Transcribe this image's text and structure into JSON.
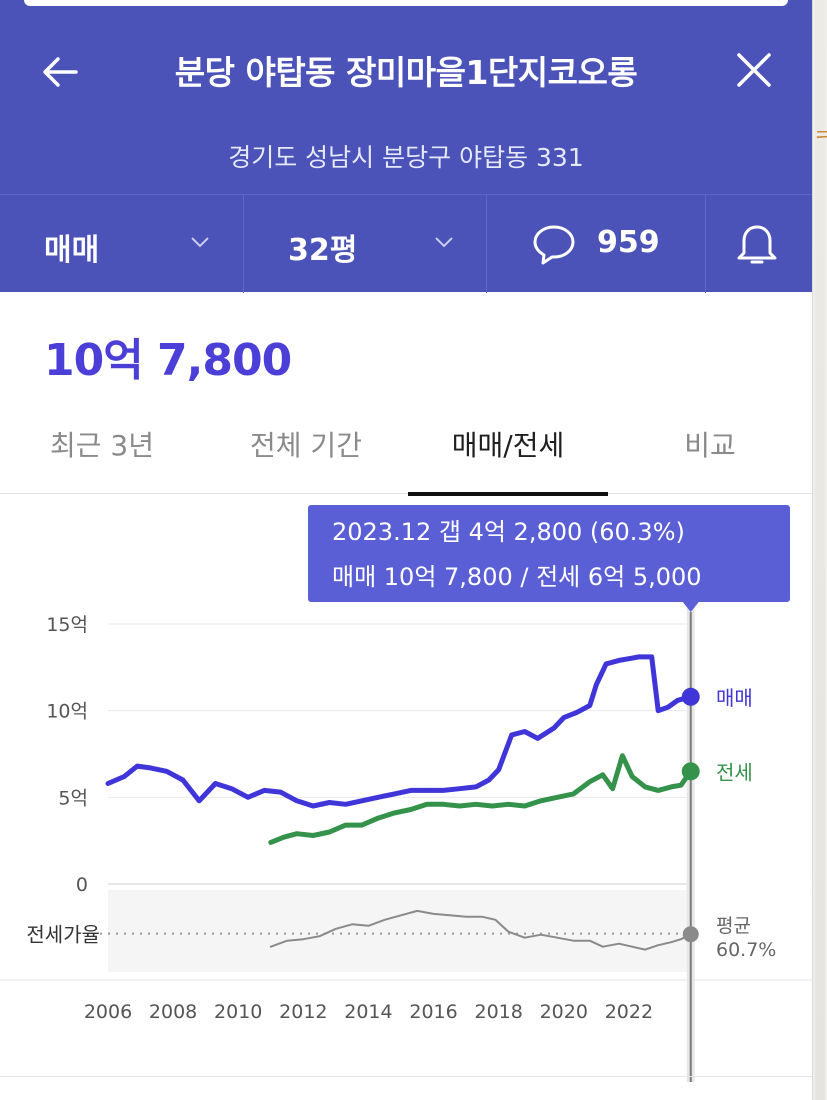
{
  "header": {
    "title": "분당 야탑동 장미마을1단지코오롱",
    "address": "경기도 성남시 분당구 야탑동 331",
    "trade_type": "매매",
    "size": "32평",
    "comment_count": "959"
  },
  "price": "10억 7,800",
  "tabs": [
    {
      "label": "최근 3년"
    },
    {
      "label": "전체 기간"
    },
    {
      "label": "매매/전세"
    },
    {
      "label": "비교"
    }
  ],
  "colors": {
    "header_bg": "#4b52b8",
    "sale": "#3f35d8",
    "jeonse": "#35924a",
    "ratio": "#8a8a8a",
    "tooltip_bg": "#5b5fd6"
  },
  "chart_data": {
    "type": "line",
    "tooltip": {
      "line1": "2023.12  갭 4억 2,800 (60.3%)",
      "line2": "매매 10억 7,800 / 전세 6억 5,000"
    },
    "y_ticks": [
      "15억",
      "10억",
      "5억",
      "0"
    ],
    "y_tick_values": [
      15,
      10,
      5,
      0
    ],
    "ylim": [
      0,
      15
    ],
    "xlim": [
      2006,
      2024
    ],
    "x_ticks": [
      "2006",
      "2008",
      "2010",
      "2012",
      "2014",
      "2016",
      "2018",
      "2020",
      "2022"
    ],
    "ratio_label": "전세가율",
    "avg_label": "평균",
    "avg_value": "60.7%",
    "series": [
      {
        "name": "매매",
        "unit": "억",
        "points": [
          [
            2006.0,
            5.8
          ],
          [
            2006.5,
            6.2
          ],
          [
            2006.9,
            6.8
          ],
          [
            2007.3,
            6.7
          ],
          [
            2007.8,
            6.5
          ],
          [
            2008.3,
            6.0
          ],
          [
            2008.8,
            4.8
          ],
          [
            2009.3,
            5.8
          ],
          [
            2009.8,
            5.5
          ],
          [
            2010.3,
            5.0
          ],
          [
            2010.8,
            5.4
          ],
          [
            2011.3,
            5.3
          ],
          [
            2011.8,
            4.8
          ],
          [
            2012.3,
            4.5
          ],
          [
            2012.8,
            4.7
          ],
          [
            2013.3,
            4.6
          ],
          [
            2013.8,
            4.8
          ],
          [
            2014.3,
            5.0
          ],
          [
            2014.8,
            5.2
          ],
          [
            2015.3,
            5.4
          ],
          [
            2015.8,
            5.4
          ],
          [
            2016.3,
            5.4
          ],
          [
            2016.8,
            5.5
          ],
          [
            2017.3,
            5.6
          ],
          [
            2017.7,
            6.0
          ],
          [
            2018.0,
            6.6
          ],
          [
            2018.4,
            8.6
          ],
          [
            2018.8,
            8.8
          ],
          [
            2019.2,
            8.4
          ],
          [
            2019.7,
            9.0
          ],
          [
            2020.0,
            9.6
          ],
          [
            2020.4,
            9.9
          ],
          [
            2020.8,
            10.3
          ],
          [
            2021.0,
            11.5
          ],
          [
            2021.3,
            12.7
          ],
          [
            2021.7,
            12.9
          ],
          [
            2022.0,
            13.0
          ],
          [
            2022.3,
            13.1
          ],
          [
            2022.7,
            13.1
          ],
          [
            2022.9,
            10.0
          ],
          [
            2023.2,
            10.2
          ],
          [
            2023.5,
            10.6
          ],
          [
            2023.9,
            10.8
          ]
        ]
      },
      {
        "name": "전세",
        "unit": "억",
        "points": [
          [
            2011.0,
            2.4
          ],
          [
            2011.4,
            2.7
          ],
          [
            2011.8,
            2.9
          ],
          [
            2012.3,
            2.8
          ],
          [
            2012.8,
            3.0
          ],
          [
            2013.3,
            3.4
          ],
          [
            2013.8,
            3.4
          ],
          [
            2014.3,
            3.8
          ],
          [
            2014.8,
            4.1
          ],
          [
            2015.3,
            4.3
          ],
          [
            2015.8,
            4.6
          ],
          [
            2016.3,
            4.6
          ],
          [
            2016.8,
            4.5
          ],
          [
            2017.3,
            4.6
          ],
          [
            2017.8,
            4.5
          ],
          [
            2018.3,
            4.6
          ],
          [
            2018.8,
            4.5
          ],
          [
            2019.3,
            4.8
          ],
          [
            2019.8,
            5.0
          ],
          [
            2020.3,
            5.2
          ],
          [
            2020.8,
            5.9
          ],
          [
            2021.2,
            6.3
          ],
          [
            2021.5,
            5.5
          ],
          [
            2021.8,
            7.4
          ],
          [
            2022.1,
            6.2
          ],
          [
            2022.5,
            5.6
          ],
          [
            2022.9,
            5.4
          ],
          [
            2023.3,
            5.6
          ],
          [
            2023.6,
            5.7
          ],
          [
            2023.9,
            6.5
          ]
        ]
      },
      {
        "name": "전세가율",
        "unit": "%",
        "points": [
          [
            2011.0,
            52
          ],
          [
            2011.5,
            56
          ],
          [
            2012.0,
            57
          ],
          [
            2012.5,
            59
          ],
          [
            2013.0,
            64
          ],
          [
            2013.5,
            67
          ],
          [
            2014.0,
            66
          ],
          [
            2014.5,
            70
          ],
          [
            2015.0,
            73
          ],
          [
            2015.5,
            76
          ],
          [
            2016.0,
            74
          ],
          [
            2016.5,
            73
          ],
          [
            2017.0,
            72
          ],
          [
            2017.5,
            72
          ],
          [
            2017.9,
            70
          ],
          [
            2018.3,
            62
          ],
          [
            2018.8,
            58
          ],
          [
            2019.3,
            60
          ],
          [
            2019.8,
            58
          ],
          [
            2020.3,
            56
          ],
          [
            2020.8,
            56
          ],
          [
            2021.2,
            52
          ],
          [
            2021.7,
            54
          ],
          [
            2022.1,
            52
          ],
          [
            2022.5,
            50
          ],
          [
            2022.9,
            53
          ],
          [
            2023.3,
            55
          ],
          [
            2023.6,
            57
          ],
          [
            2023.9,
            60.3
          ]
        ]
      }
    ]
  }
}
